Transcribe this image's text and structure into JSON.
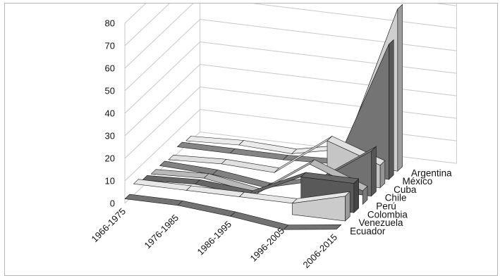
{
  "chart_data": {
    "type": "area",
    "variant": "3d-ribbon",
    "title": "",
    "xlabel": "",
    "ylabel": "",
    "categories": [
      "1966-1975",
      "1976-1985",
      "1986-1995",
      "1996-2005",
      "2006-2015"
    ],
    "yticks": [
      0,
      10,
      20,
      30,
      40,
      50,
      60,
      70,
      80
    ],
    "ylim": [
      0,
      80
    ],
    "grid": true,
    "series": [
      {
        "name": "Ecuador",
        "values": [
          2,
          2,
          0,
          -3,
          0
        ],
        "color": "#6a6a6a"
      },
      {
        "name": "Venezuela",
        "values": [
          5,
          5,
          5,
          5,
          11
        ],
        "color": "#d6d6d6"
      },
      {
        "name": "Colombia",
        "values": [
          3,
          4,
          2,
          13,
          13
        ],
        "color": "#5e5e5e"
      },
      {
        "name": "Perú",
        "values": [
          2,
          3,
          -1,
          15,
          6
        ],
        "color": "#aaaaaa"
      },
      {
        "name": "Chile",
        "values": [
          2,
          1,
          -2,
          4,
          20
        ],
        "color": "#777777"
      },
      {
        "name": "Cuba",
        "values": [
          1,
          2,
          1,
          18,
          10
        ],
        "color": "#cfcfcf"
      },
      {
        "name": "México",
        "values": [
          3,
          3,
          3,
          4,
          60
        ],
        "color": "#7a7a7a"
      },
      {
        "name": "Argentina",
        "values": [
          2,
          3,
          2,
          7,
          72
        ],
        "color": "#dadada"
      }
    ]
  }
}
